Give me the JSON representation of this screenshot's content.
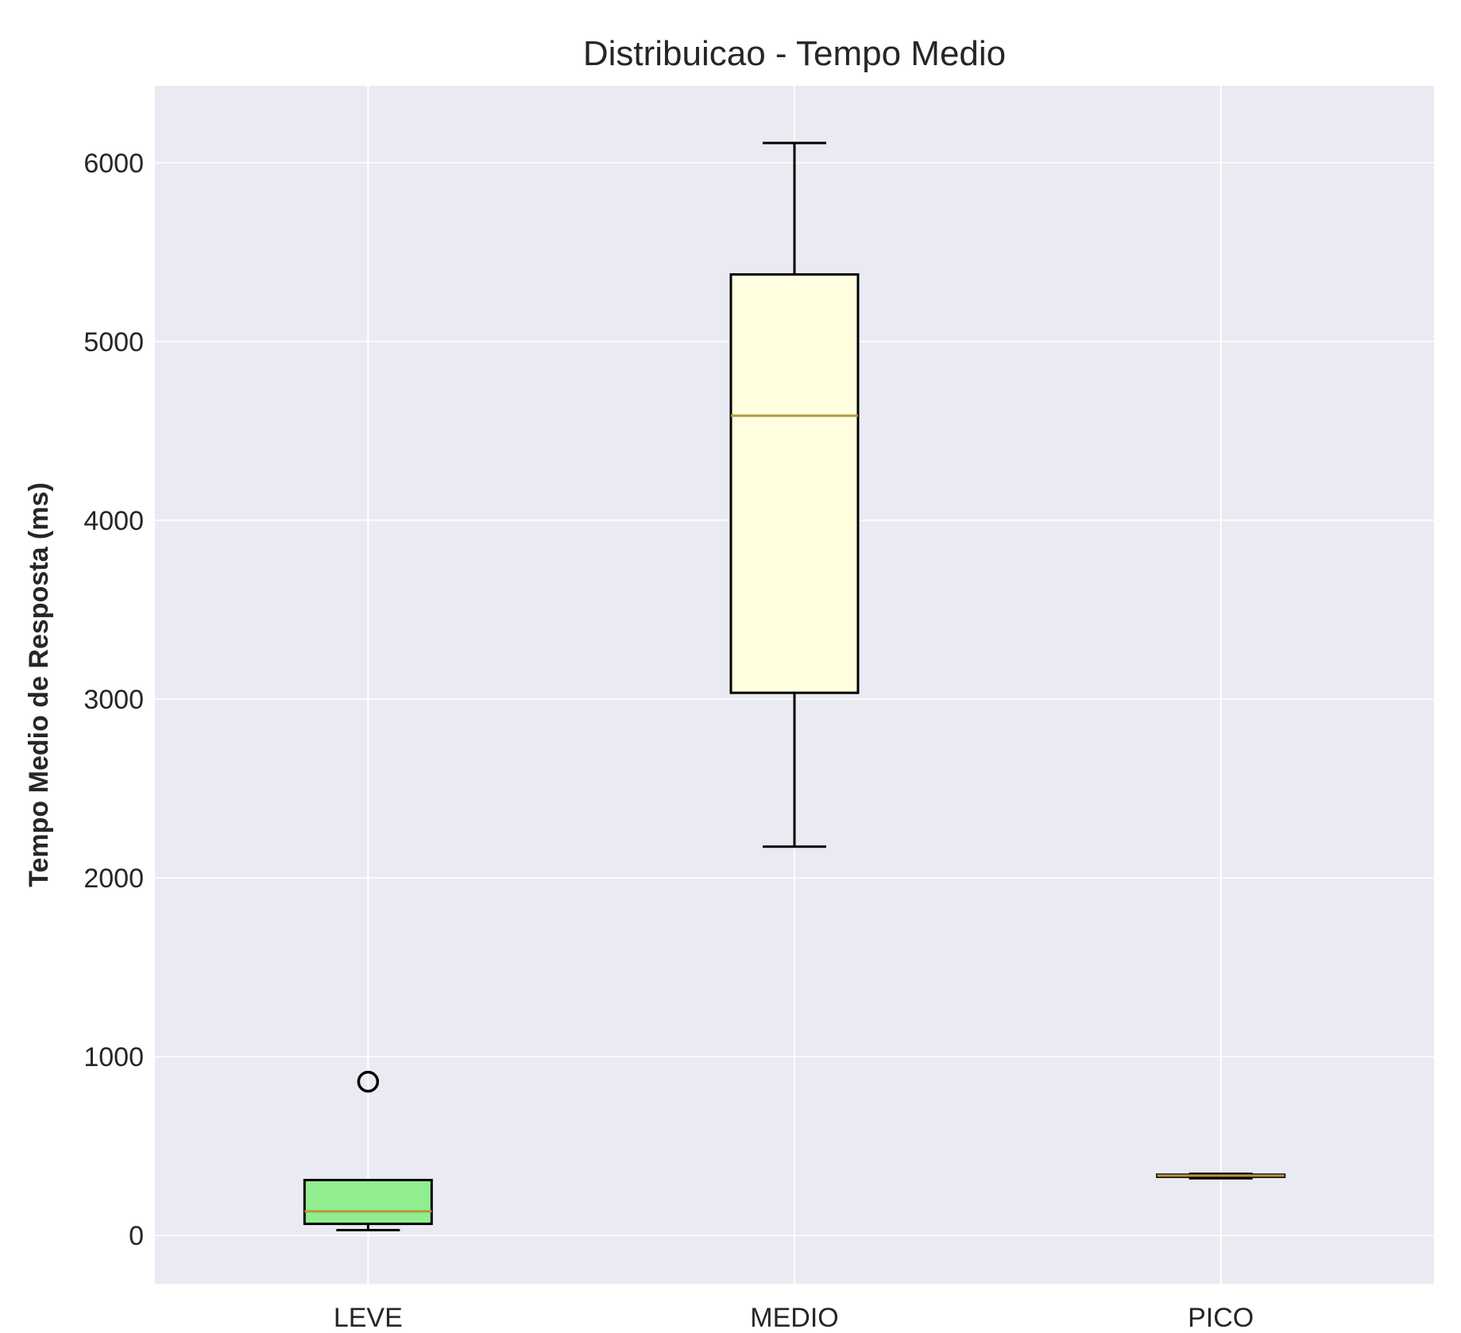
{
  "chart_data": {
    "type": "box",
    "title": "Distribuicao - Tempo Medio",
    "xlabel": "",
    "ylabel": "Tempo Medio de Resposta (ms)",
    "ylim": [
      -270,
      6430
    ],
    "yticks": [
      0,
      1000,
      2000,
      3000,
      4000,
      5000,
      6000
    ],
    "ytick_labels": [
      "0",
      "1000",
      "2000",
      "3000",
      "4000",
      "5000",
      "6000"
    ],
    "grid": true,
    "colors": {
      "background": "#EAEAF2",
      "grid": "#FFFFFF",
      "box_edge": "#000000",
      "median": "#B8963C"
    },
    "categories": [
      "LEVE",
      "MEDIO",
      "PICO"
    ],
    "boxes": [
      {
        "label": "LEVE",
        "whisker_low": 30,
        "q1": 65,
        "median": 135,
        "q3": 310,
        "whisker_high": 310,
        "outliers": [
          860
        ],
        "fill": "#90EE90"
      },
      {
        "label": "MEDIO",
        "whisker_low": 2175,
        "q1": 3035,
        "median": 4585,
        "q3": 5375,
        "whisker_high": 6110,
        "outliers": [],
        "fill": "#FFFFE0"
      },
      {
        "label": "PICO",
        "whisker_low": 320,
        "q1": 328,
        "median": 335,
        "q3": 340,
        "whisker_high": 345,
        "outliers": [],
        "fill": "#ADD8E6"
      }
    ]
  }
}
